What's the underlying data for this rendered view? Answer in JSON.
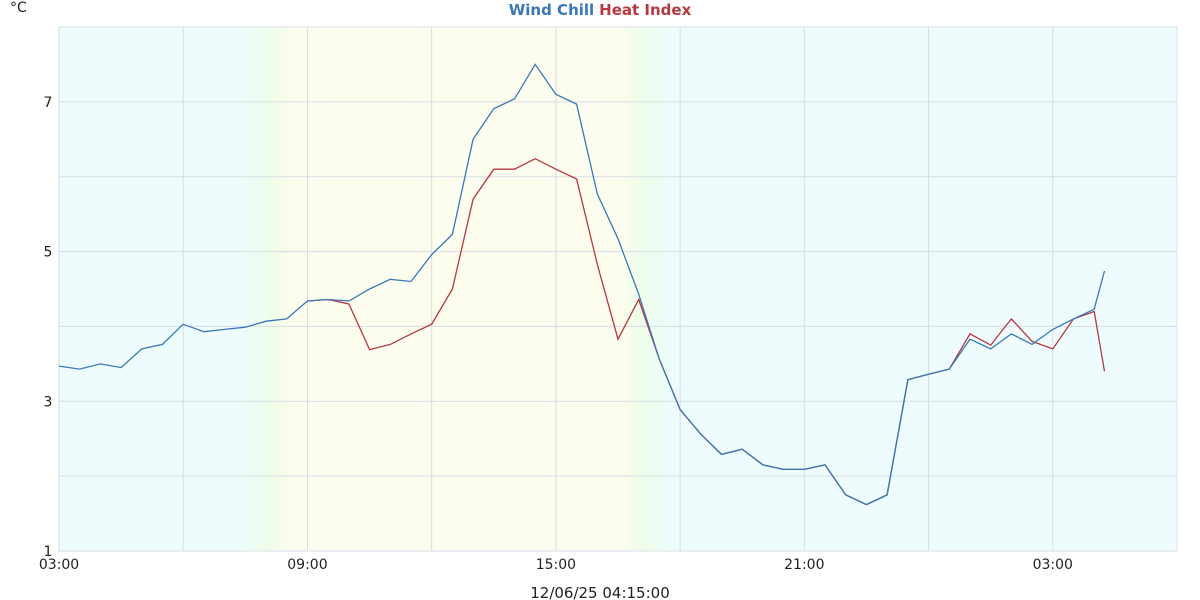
{
  "chart_data": {
    "type": "line",
    "y_label": "°C",
    "footer": "12/06/25 04:15:00",
    "x": [
      0,
      0.5,
      1,
      1.5,
      2,
      2.5,
      3,
      3.5,
      4,
      4.5,
      5,
      5.5,
      6,
      6.5,
      7,
      7.5,
      8,
      8.5,
      9,
      9.5,
      10,
      10.5,
      11,
      11.5,
      12,
      12.5,
      13,
      13.5,
      14,
      14.5,
      15,
      15.5,
      16,
      16.5,
      17,
      17.5,
      18,
      18.5,
      19,
      19.5,
      20,
      20.5,
      21,
      21.5,
      22,
      22.5,
      23,
      23.5,
      24,
      24.5,
      25,
      25.25
    ],
    "series": [
      {
        "name": "Heat Index",
        "color": "#b5393f",
        "values": [
          null,
          null,
          null,
          null,
          null,
          null,
          null,
          null,
          null,
          null,
          null,
          null,
          4.34,
          4.36,
          4.3,
          3.69,
          3.76,
          3.9,
          4.03,
          4.5,
          5.7,
          6.1,
          6.1,
          6.24,
          6.1,
          5.97,
          4.83,
          3.83,
          4.36,
          3.56,
          2.89,
          2.56,
          2.29,
          2.36,
          2.15,
          2.09,
          2.09,
          2.15,
          1.75,
          1.62,
          1.75,
          3.29,
          3.36,
          3.43,
          3.9,
          3.75,
          4.1,
          3.8,
          3.7,
          4.1,
          4.2,
          3.4
        ]
      },
      {
        "name": "Wind Chill",
        "color": "#3a78b5",
        "values": [
          3.47,
          3.43,
          3.5,
          3.45,
          3.7,
          3.76,
          4.03,
          3.93,
          3.96,
          3.99,
          4.07,
          4.1,
          4.34,
          4.36,
          4.34,
          4.5,
          4.63,
          4.6,
          4.96,
          5.23,
          6.5,
          6.91,
          7.04,
          7.5,
          7.1,
          6.97,
          5.77,
          5.17,
          4.43,
          3.56,
          2.89,
          2.56,
          2.29,
          2.36,
          2.15,
          2.09,
          2.09,
          2.15,
          1.75,
          1.62,
          1.75,
          3.29,
          3.36,
          3.43,
          3.83,
          3.7,
          3.9,
          3.76,
          3.96,
          4.1,
          4.23,
          4.74
        ]
      }
    ],
    "xlim": [
      0,
      27
    ],
    "xticks": [
      {
        "value": 0,
        "label": "03:00"
      },
      {
        "value": 6,
        "label": "09:00"
      },
      {
        "value": 12,
        "label": "15:00"
      },
      {
        "value": 18,
        "label": "21:00"
      },
      {
        "value": 24,
        "label": "03:00"
      }
    ],
    "xgrid": [
      3,
      9,
      15,
      21
    ],
    "ylim": [
      1,
      8
    ],
    "yticks": [
      1,
      3,
      5,
      7
    ],
    "ygrid": [
      2,
      4,
      6
    ],
    "grid": true
  }
}
